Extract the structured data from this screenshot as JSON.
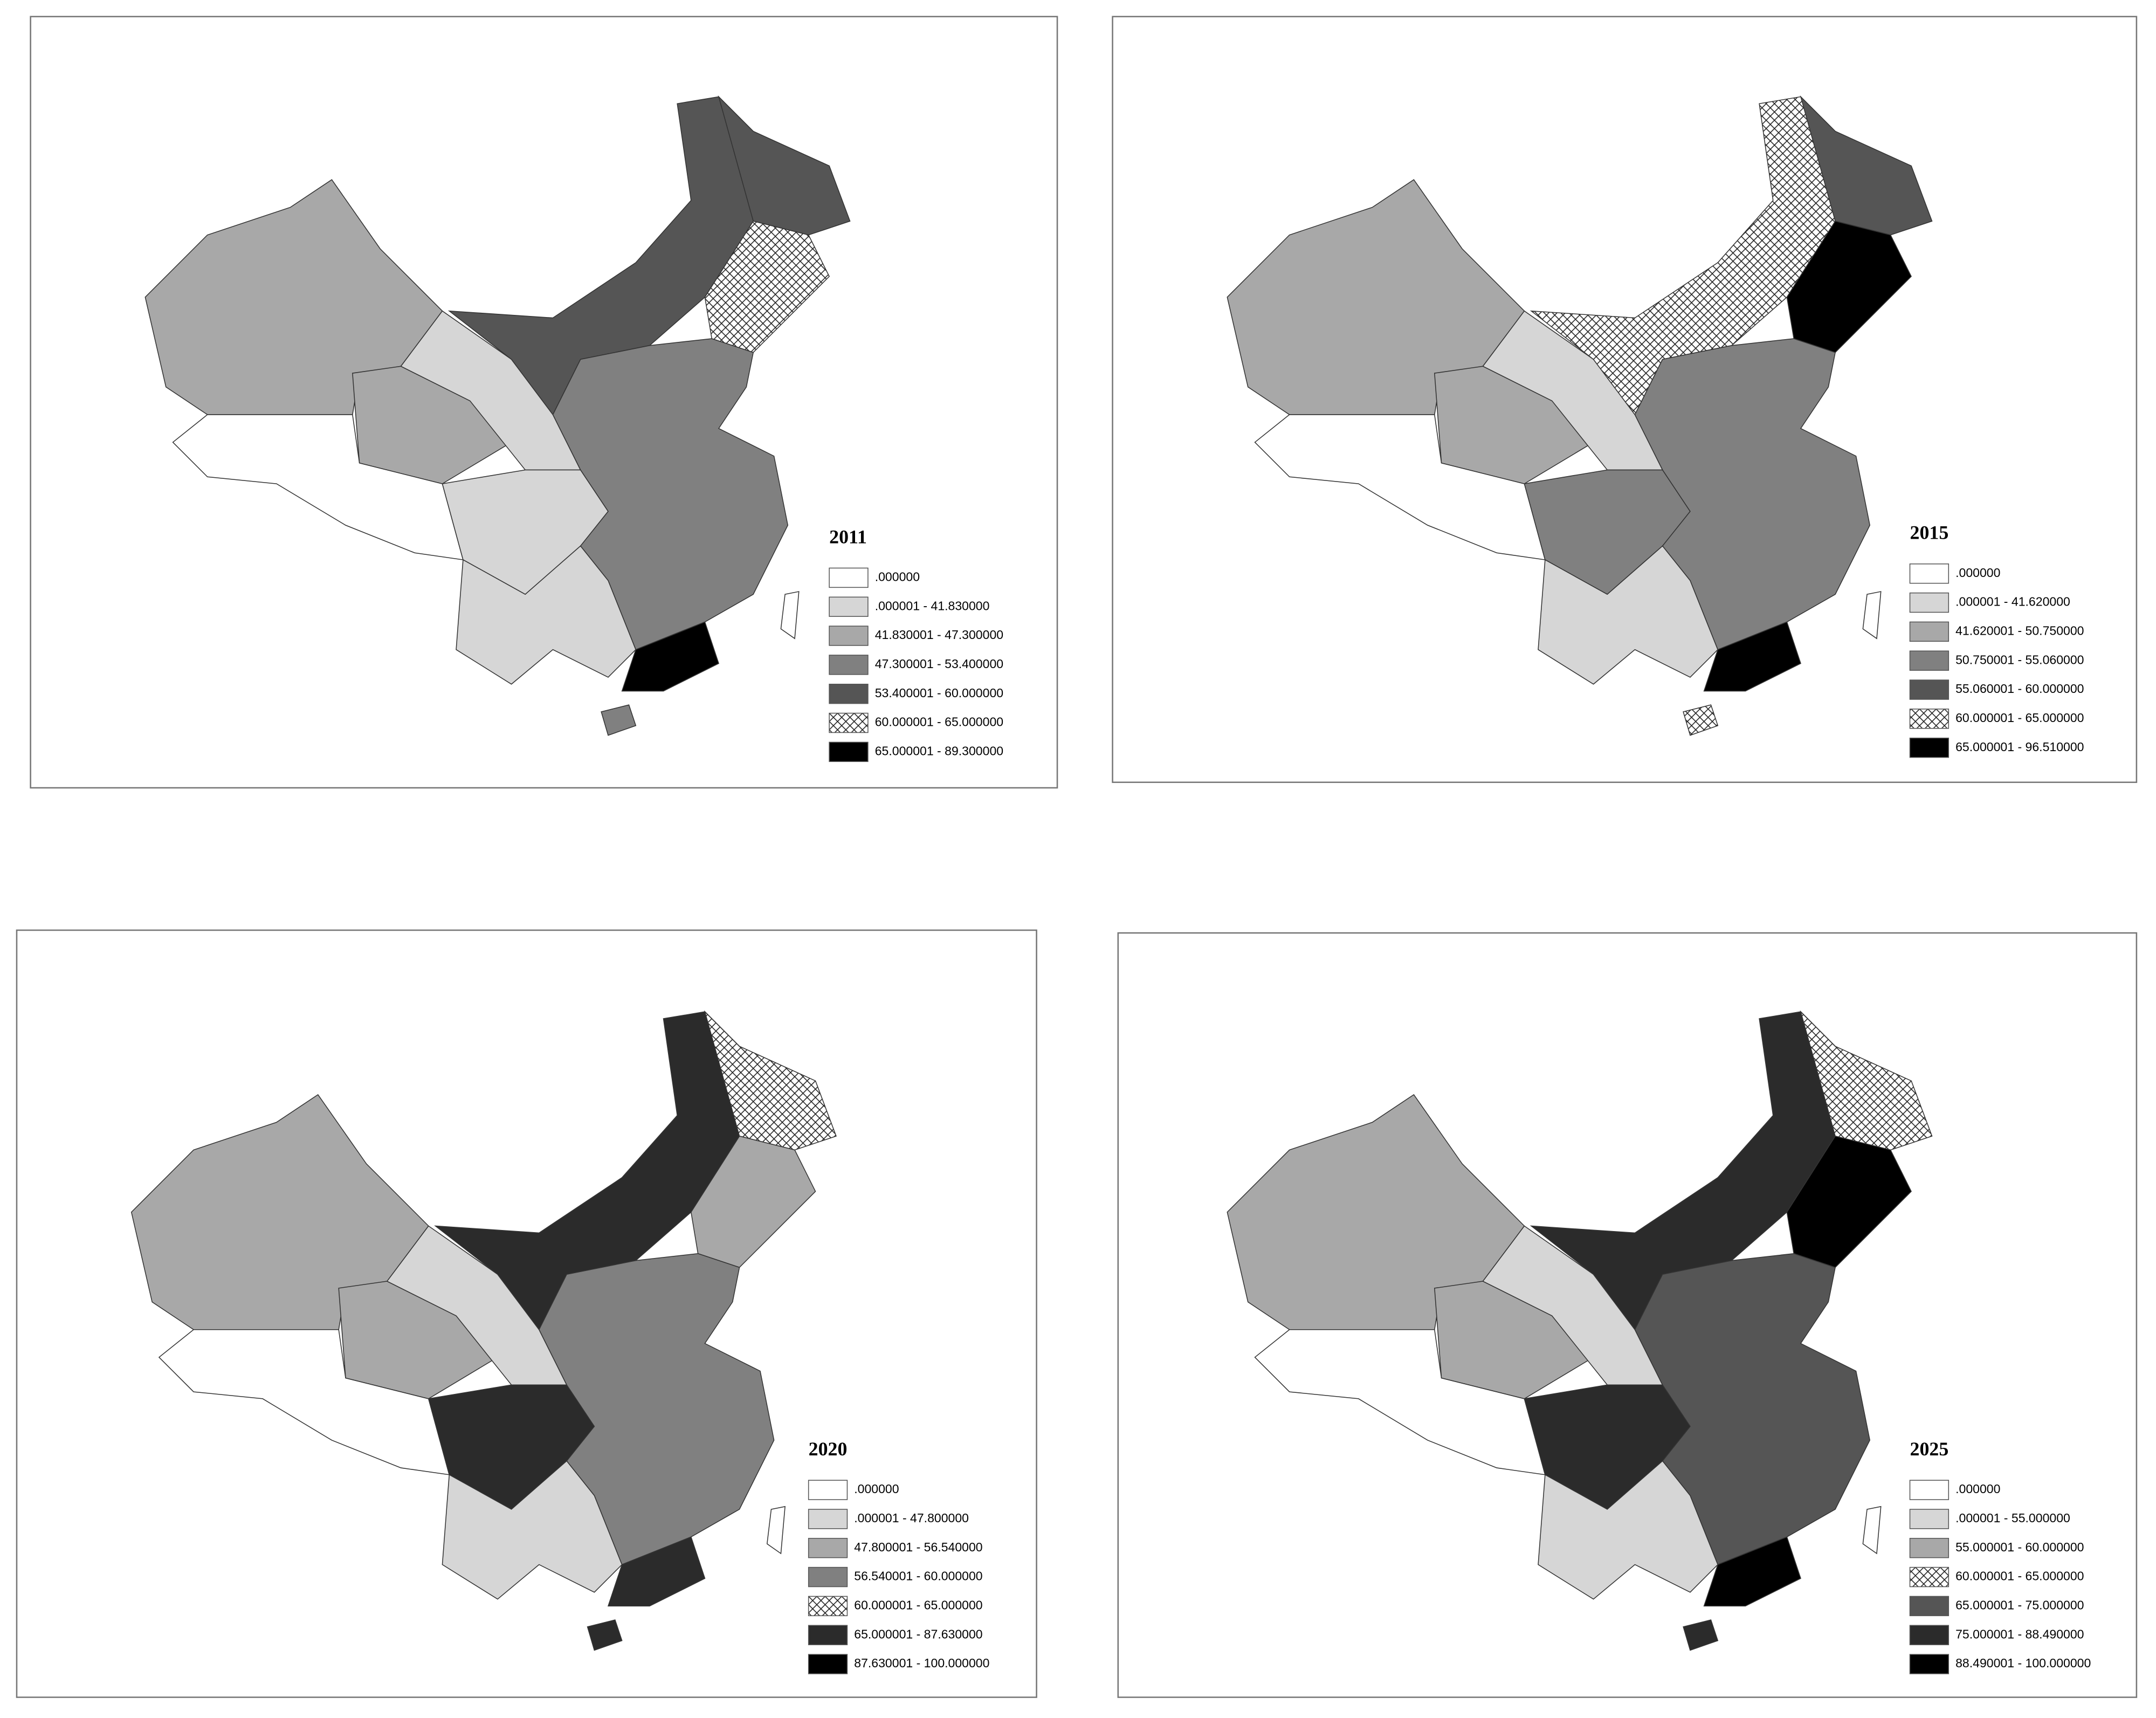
{
  "panels": [
    {
      "title": "2011",
      "legend": [
        {
          "label": ".000000",
          "fill": "#ffffff"
        },
        {
          "label": ".000001 - 41.830000",
          "fill": "#d6d6d6"
        },
        {
          "label": "41.830001 - 47.300000",
          "fill": "#a8a8a8"
        },
        {
          "label": "47.300001 - 53.400000",
          "fill": "#808080"
        },
        {
          "label": "53.400001 - 60.000000",
          "fill": "#555555"
        },
        {
          "label": "60.000001 - 65.000000",
          "fill": "hatch"
        },
        {
          "label": "65.000001 - 89.300000",
          "fill": "#000000"
        }
      ]
    },
    {
      "title": "2015",
      "legend": [
        {
          "label": ".000000",
          "fill": "#ffffff"
        },
        {
          "label": ".000001 - 41.620000",
          "fill": "#d6d6d6"
        },
        {
          "label": "41.620001 - 50.750000",
          "fill": "#a8a8a8"
        },
        {
          "label": "50.750001 - 55.060000",
          "fill": "#808080"
        },
        {
          "label": "55.060001 - 60.000000",
          "fill": "#555555"
        },
        {
          "label": "60.000001 - 65.000000",
          "fill": "hatch"
        },
        {
          "label": "65.000001 - 96.510000",
          "fill": "#000000"
        }
      ]
    },
    {
      "title": "2020",
      "legend": [
        {
          "label": ".000000",
          "fill": "#ffffff"
        },
        {
          "label": ".000001 - 47.800000",
          "fill": "#d6d6d6"
        },
        {
          "label": "47.800001 - 56.540000",
          "fill": "#a8a8a8"
        },
        {
          "label": "56.540001 - 60.000000",
          "fill": "#808080"
        },
        {
          "label": "60.000001 - 65.000000",
          "fill": "hatch"
        },
        {
          "label": "65.000001 - 87.630000",
          "fill": "#2b2b2b"
        },
        {
          "label": "87.630001 - 100.000000",
          "fill": "#000000"
        }
      ]
    },
    {
      "title": "2025",
      "legend": [
        {
          "label": ".000000",
          "fill": "#ffffff"
        },
        {
          "label": ".000001 - 55.000000",
          "fill": "#d6d6d6"
        },
        {
          "label": "55.000001 - 60.000000",
          "fill": "#a8a8a8"
        },
        {
          "label": "60.000001 - 65.000000",
          "fill": "hatch"
        },
        {
          "label": "65.000001 - 75.000000",
          "fill": "#555555"
        },
        {
          "label": "75.000001 - 88.490000",
          "fill": "#2b2b2b"
        },
        {
          "label": "88.490001 - 100.000000",
          "fill": "#000000"
        }
      ]
    }
  ]
}
